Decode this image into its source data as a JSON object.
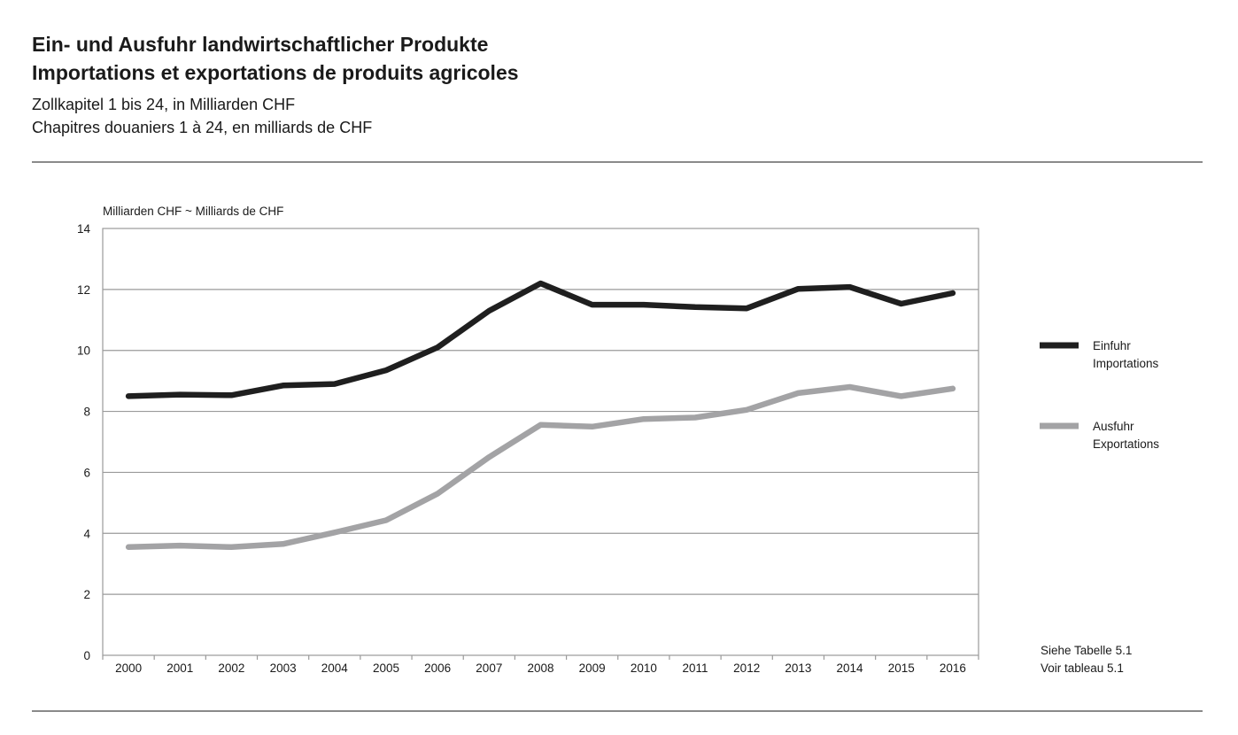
{
  "header": {
    "title_de": "Ein- und Ausfuhr landwirtschaftlicher Produkte",
    "title_fr": "Importations et exportations de produits agricoles",
    "subtitle_de": "Zollkapitel 1 bis 24, in Milliarden CHF",
    "subtitle_fr": "Chapitres douaniers 1 à 24, en milliards de CHF"
  },
  "chart_data": {
    "type": "line",
    "y_axis_unit": "Milliarden CHF ~ Milliards de CHF",
    "ylim": [
      0,
      14
    ],
    "y_ticks": [
      0,
      2,
      4,
      6,
      8,
      10,
      12,
      14
    ],
    "grid": true,
    "legend_position": "right",
    "categories": [
      "2000",
      "2001",
      "2002",
      "2003",
      "2004",
      "2005",
      "2006",
      "2007",
      "2008",
      "2009",
      "2010",
      "2011",
      "2012",
      "2013",
      "2014",
      "2015",
      "2016"
    ],
    "series": [
      {
        "name_de": "Einfuhr",
        "name_fr": "Importations",
        "color": "#1f1f1f",
        "values": [
          8.5,
          8.55,
          8.53,
          8.85,
          8.9,
          9.35,
          10.1,
          11.3,
          12.2,
          11.5,
          11.5,
          11.42,
          11.38,
          12.02,
          12.08,
          11.53,
          11.88
        ]
      },
      {
        "name_de": "Ausfuhr",
        "name_fr": "Exportations",
        "color": "#a3a3a5",
        "values": [
          3.55,
          3.6,
          3.55,
          3.65,
          4.03,
          4.43,
          5.3,
          6.5,
          7.56,
          7.5,
          7.75,
          7.8,
          8.05,
          8.6,
          8.8,
          8.5,
          8.75
        ]
      }
    ],
    "source_note_de": "Siehe Tabelle 5.1",
    "source_note_fr": "Voir tableau 5.1"
  }
}
